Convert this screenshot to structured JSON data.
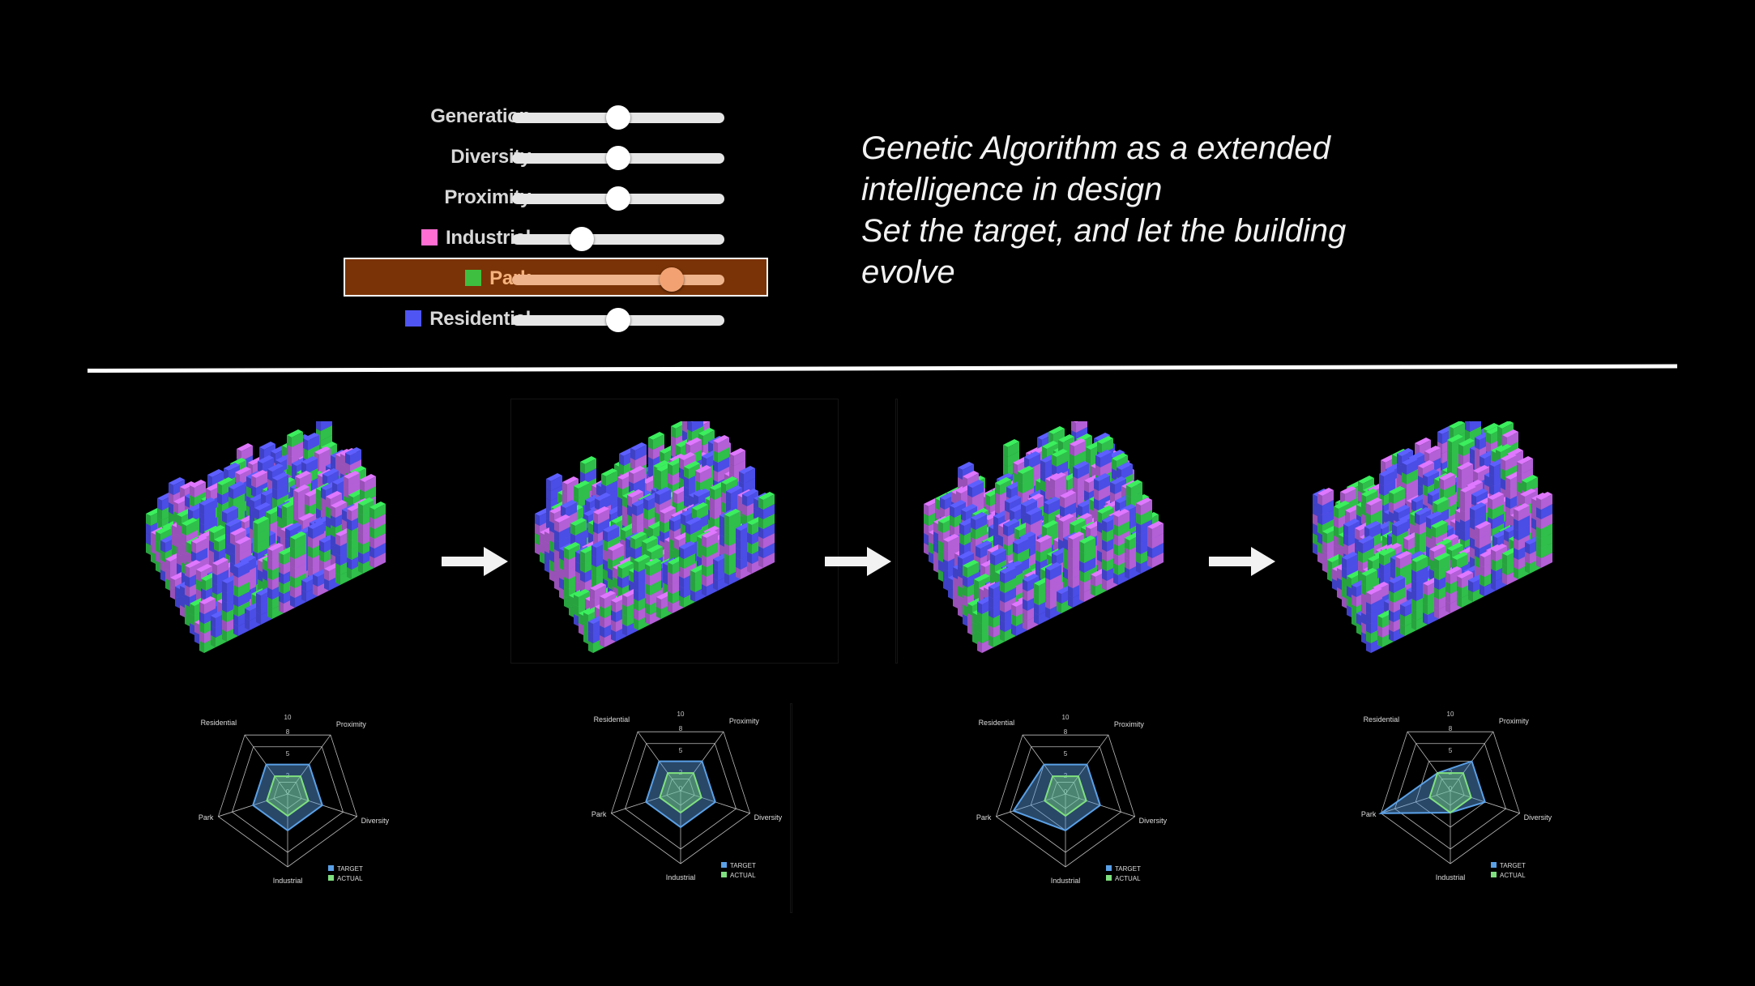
{
  "sliders": [
    {
      "label": "Generation",
      "swatch": null,
      "value": 0.5,
      "selected": false
    },
    {
      "label": "Diversity",
      "swatch": null,
      "value": 0.5,
      "selected": false
    },
    {
      "label": "Proximity",
      "swatch": null,
      "value": 0.5,
      "selected": false
    },
    {
      "label": "Industrial",
      "swatch": "#ff6ed2",
      "value": 0.33,
      "selected": false
    },
    {
      "label": "Park",
      "swatch": "#3fbf3f",
      "value": 0.75,
      "selected": true
    },
    {
      "label": "Residential",
      "swatch": "#4f55f2",
      "value": 0.5,
      "selected": false
    }
  ],
  "headline": {
    "line1": "Genetic Algorithm as a extended",
    "line2": "intelligence in design",
    "line3": "Set the target, and let the building",
    "line4": "evolve"
  },
  "colors": {
    "residential": "#4a4de6",
    "park": "#2fbf4a",
    "industrial": "#b35fd6",
    "target": "#5aa0e6",
    "actual": "#7fe07f"
  },
  "radars": [
    {
      "axes": [
        "Residential",
        "Proximity",
        "Diversity",
        "Industrial",
        "Park"
      ],
      "ticks": [
        "0",
        "2",
        "5",
        "8",
        "10"
      ],
      "legend": [
        "TARGET",
        "ACTUAL"
      ],
      "target": [
        5,
        5,
        5,
        5,
        5
      ],
      "actual": [
        3,
        3,
        3,
        3,
        3
      ]
    },
    {
      "axes": [
        "Residential",
        "Proximity",
        "Diversity",
        "Industrial",
        "Park"
      ],
      "ticks": [
        "0",
        "2",
        "5",
        "8",
        "10"
      ],
      "legend": [
        "TARGET",
        "ACTUAL"
      ],
      "target": [
        5,
        5,
        5,
        5,
        5
      ],
      "actual": [
        3,
        3,
        3,
        3,
        3
      ]
    },
    {
      "axes": [
        "Residential",
        "Proximity",
        "Diversity",
        "Industrial",
        "Park"
      ],
      "ticks": [
        "0",
        "2",
        "5",
        "8",
        "10"
      ],
      "legend": [
        "TARGET",
        "ACTUAL"
      ],
      "target": [
        5,
        5,
        5,
        5,
        7.5
      ],
      "actual": [
        3,
        3,
        3,
        3,
        3
      ]
    },
    {
      "axes": [
        "Residential",
        "Proximity",
        "Diversity",
        "Industrial",
        "Park"
      ],
      "ticks": [
        "0",
        "2",
        "5",
        "8",
        "10"
      ],
      "legend": [
        "TARGET",
        "ACTUAL"
      ],
      "target": [
        3,
        5,
        5,
        3,
        10
      ],
      "actual": [
        3,
        3,
        3,
        3,
        3
      ]
    }
  ]
}
